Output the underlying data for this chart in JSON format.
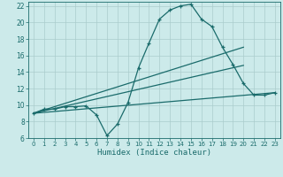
{
  "xlabel": "Humidex (Indice chaleur)",
  "bg_color": "#cceaea",
  "grid_color": "#aacccc",
  "line_color": "#1a6b6b",
  "xlim": [
    -0.5,
    23.5
  ],
  "ylim": [
    6,
    22.5
  ],
  "xticks": [
    0,
    1,
    2,
    3,
    4,
    5,
    6,
    7,
    8,
    9,
    10,
    11,
    12,
    13,
    14,
    15,
    16,
    17,
    18,
    19,
    20,
    21,
    22,
    23
  ],
  "yticks": [
    6,
    8,
    10,
    12,
    14,
    16,
    18,
    20,
    22
  ],
  "series1_x": [
    0,
    1,
    2,
    3,
    4,
    5,
    6,
    7,
    8,
    9,
    10,
    11,
    12,
    13,
    14,
    15,
    16,
    17,
    18,
    19,
    20,
    21,
    22,
    23
  ],
  "series1_y": [
    9.0,
    9.5,
    9.5,
    9.8,
    9.8,
    9.9,
    8.8,
    6.3,
    7.7,
    10.3,
    14.5,
    17.5,
    20.4,
    21.5,
    22.0,
    22.2,
    20.4,
    19.5,
    17.0,
    14.9,
    12.6,
    11.2,
    11.2,
    11.5
  ],
  "series2_x": [
    0,
    20
  ],
  "series2_y": [
    9.0,
    17.0
  ],
  "series3_x": [
    0,
    20
  ],
  "series3_y": [
    9.0,
    14.8
  ],
  "series4_x": [
    0,
    23
  ],
  "series4_y": [
    9.0,
    11.5
  ]
}
